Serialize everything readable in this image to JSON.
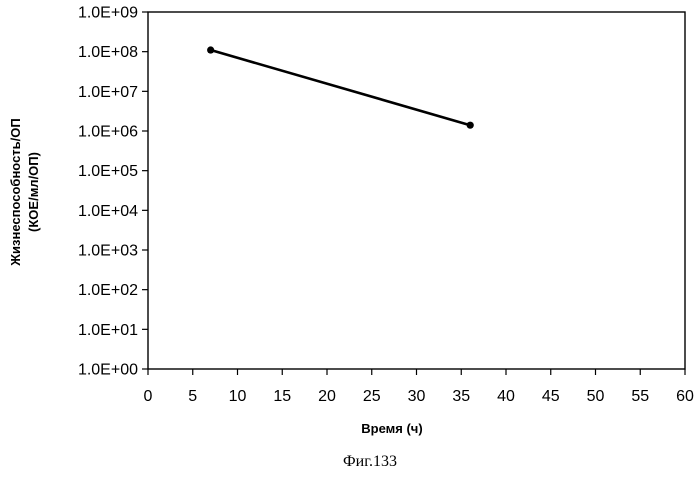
{
  "chart_data": {
    "type": "line",
    "title": "",
    "xlabel": "Время (ч)",
    "ylabel_lines": [
      "Жизнеспособность/ОП",
      "(КОЕ/мл/ОП)"
    ],
    "y_scale": "log",
    "xlim": [
      0,
      60
    ],
    "ylim": [
      1,
      1000000000
    ],
    "x_ticks": [
      0,
      5,
      10,
      15,
      20,
      25,
      30,
      35,
      40,
      45,
      50,
      55,
      60
    ],
    "x_tick_labels": [
      "0",
      "5",
      "10",
      "15",
      "20",
      "25",
      "30",
      "35",
      "40",
      "45",
      "50",
      "55",
      "60"
    ],
    "y_ticks": [
      1,
      10,
      100,
      1000,
      10000,
      100000,
      1000000,
      10000000,
      100000000,
      1000000000
    ],
    "y_tick_labels": [
      "1.0E+00",
      "1.0E+01",
      "1.0E+02",
      "1.0E+03",
      "1.0E+04",
      "1.0E+05",
      "1.0E+06",
      "1.0E+07",
      "1.0E+08",
      "1.0E+09"
    ],
    "grid": false,
    "legend": "none",
    "series": [
      {
        "x": [
          7,
          36
        ],
        "y": [
          110000000,
          1400000
        ],
        "color": "#000000",
        "marker": "circle"
      }
    ]
  },
  "caption": "Фиг.133"
}
